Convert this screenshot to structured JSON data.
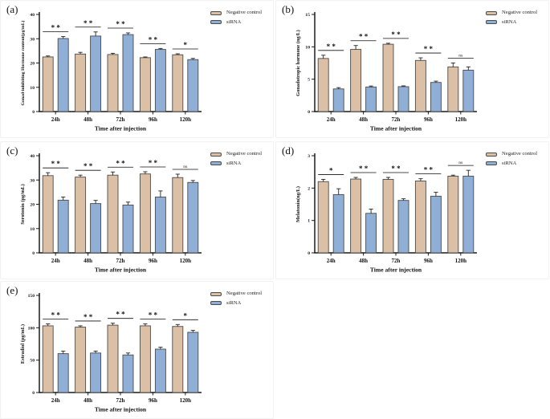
{
  "legend": {
    "items": [
      {
        "label": "Negative control",
        "color": "#DCC0A6"
      },
      {
        "label": "siRNA",
        "color": "#8FAFD6"
      }
    ]
  },
  "colors": {
    "bar_border": "#4a4a4a",
    "axis": "#1a1a1a",
    "error_bar": "#222222",
    "significance": "#111111"
  },
  "chart_data": [
    {
      "panel": "(a)",
      "type": "bar",
      "ylabel": "Gonad-inhibiting Hormone content(pg/mL)",
      "xlabel": "Time after injection",
      "categories": [
        "24h",
        "48h",
        "72h",
        "96h",
        "120h"
      ],
      "ylim": [
        0,
        40
      ],
      "yticks": [
        0,
        10,
        20,
        30,
        40
      ],
      "grid": false,
      "legend_position": "top-right",
      "series": [
        {
          "name": "Negative control",
          "values": [
            22.5,
            23.7,
            23.5,
            22.2,
            23.4
          ],
          "errors": [
            0.4,
            0.7,
            0.5,
            0.3,
            0.4
          ]
        },
        {
          "name": "siRNA",
          "values": [
            30.1,
            31.1,
            31.7,
            25.6,
            21.4
          ],
          "errors": [
            0.8,
            1.7,
            0.7,
            0.4,
            0.5
          ]
        }
      ],
      "significance": [
        "**",
        "**",
        "**",
        "**",
        "*"
      ]
    },
    {
      "panel": "(b)",
      "type": "bar",
      "ylabel": "Gonadotropic hormone (ng/L)",
      "xlabel": "Time after injection",
      "categories": [
        "24h",
        "48h",
        "72h",
        "96h",
        "120h"
      ],
      "ylim": [
        0,
        15
      ],
      "yticks": [
        0,
        5,
        10,
        15
      ],
      "grid": false,
      "legend_position": "top-right",
      "series": [
        {
          "name": "Negative control",
          "values": [
            8.2,
            9.6,
            10.4,
            7.9,
            6.9
          ],
          "errors": [
            0.5,
            0.6,
            0.15,
            0.4,
            0.6
          ]
        },
        {
          "name": "siRNA",
          "values": [
            3.5,
            3.8,
            3.85,
            4.5,
            6.4
          ],
          "errors": [
            0.2,
            0.15,
            0.12,
            0.2,
            0.5
          ]
        }
      ],
      "significance": [
        "**",
        "**",
        "**",
        "**",
        "ns"
      ]
    },
    {
      "panel": "(c)",
      "type": "bar",
      "ylabel": "Serotonin (pg/mL)",
      "xlabel": "Time after injection",
      "categories": [
        "24h",
        "48h",
        "72h",
        "96h",
        "120h"
      ],
      "ylim": [
        0,
        40
      ],
      "yticks": [
        0,
        10,
        20,
        30,
        40
      ],
      "grid": false,
      "legend_position": "top-right",
      "series": [
        {
          "name": "Negative control",
          "values": [
            31.8,
            31.2,
            32.0,
            32.5,
            31.0
          ],
          "errors": [
            1.2,
            0.8,
            1.3,
            0.9,
            1.4
          ]
        },
        {
          "name": "siRNA",
          "values": [
            21.7,
            20.3,
            19.7,
            23.0,
            29.0
          ],
          "errors": [
            1.3,
            1.3,
            1.2,
            2.5,
            0.8
          ]
        }
      ],
      "significance": [
        "**",
        "**",
        "**",
        "**",
        "ns"
      ]
    },
    {
      "panel": "(d)",
      "type": "bar",
      "ylabel": "Melatonin(ng/L)",
      "xlabel": "Time after injection",
      "categories": [
        "24h",
        "48h",
        "72h",
        "96h",
        "120h"
      ],
      "ylim": [
        0,
        3
      ],
      "yticks": [
        0,
        1,
        2,
        3
      ],
      "grid": false,
      "legend_position": "top-right",
      "series": [
        {
          "name": "Negative control",
          "values": [
            2.2,
            2.28,
            2.27,
            2.22,
            2.37
          ],
          "errors": [
            0.07,
            0.05,
            0.06,
            0.07,
            0.03
          ]
        },
        {
          "name": "siRNA",
          "values": [
            1.8,
            1.22,
            1.62,
            1.75,
            2.37
          ],
          "errors": [
            0.18,
            0.13,
            0.05,
            0.12,
            0.18
          ]
        }
      ],
      "significance": [
        "*",
        "**",
        "**",
        "**",
        "ns"
      ]
    },
    {
      "panel": "(e)",
      "type": "bar",
      "ylabel": "Estradiol (pg/mL)",
      "xlabel": "Time after injection",
      "categories": [
        "24h",
        "48h",
        "72h",
        "96h",
        "120h"
      ],
      "ylim": [
        0,
        150
      ],
      "yticks": [
        0,
        50,
        100,
        150
      ],
      "grid": false,
      "legend_position": "top-right",
      "series": [
        {
          "name": "Negative control",
          "values": [
            103,
            101,
            104,
            103,
            102
          ],
          "errors": [
            3,
            2,
            3,
            3,
            3
          ]
        },
        {
          "name": "siRNA",
          "values": [
            60,
            61,
            58,
            67,
            93
          ],
          "errors": [
            4,
            3,
            3,
            3,
            3
          ]
        }
      ],
      "significance": [
        "**",
        "**",
        "**",
        "**",
        "*"
      ]
    }
  ]
}
